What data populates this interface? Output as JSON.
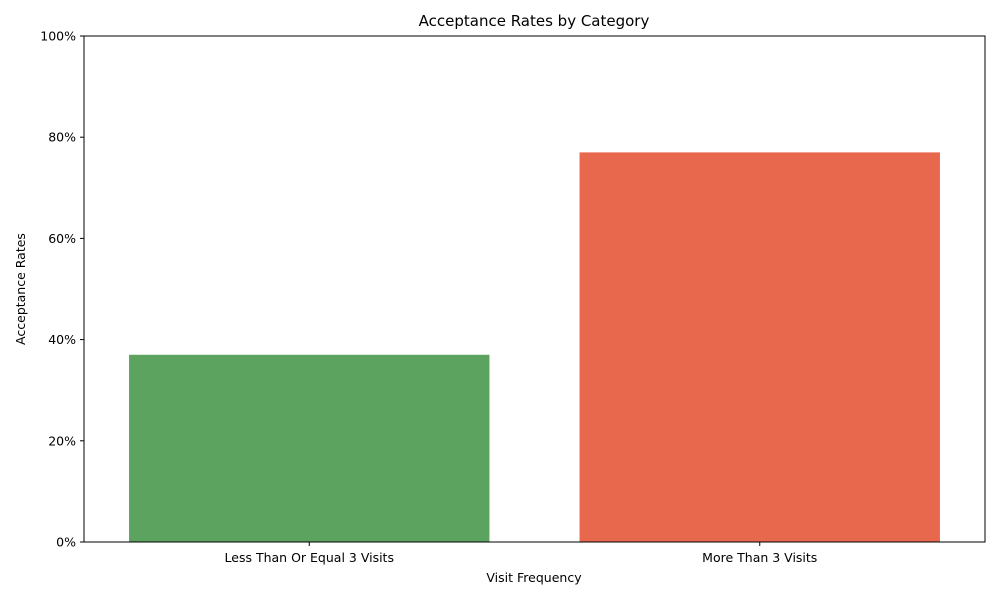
{
  "chart_data": {
    "type": "bar",
    "title": "Acceptance Rates by Category",
    "xlabel": "Visit Frequency",
    "ylabel": "Acceptance Rates",
    "categories": [
      "Less Than Or Equal 3 Visits",
      "More Than 3 Visits"
    ],
    "values": [
      0.37,
      0.77
    ],
    "colors": [
      "#5ba35e",
      "#e8684e"
    ],
    "ylim": [
      0,
      1
    ],
    "yticks": [
      0,
      0.2,
      0.4,
      0.6,
      0.8,
      1.0
    ],
    "ytick_labels": [
      "0%",
      "20%",
      "40%",
      "60%",
      "80%",
      "100%"
    ],
    "grid": false,
    "legend": false
  }
}
